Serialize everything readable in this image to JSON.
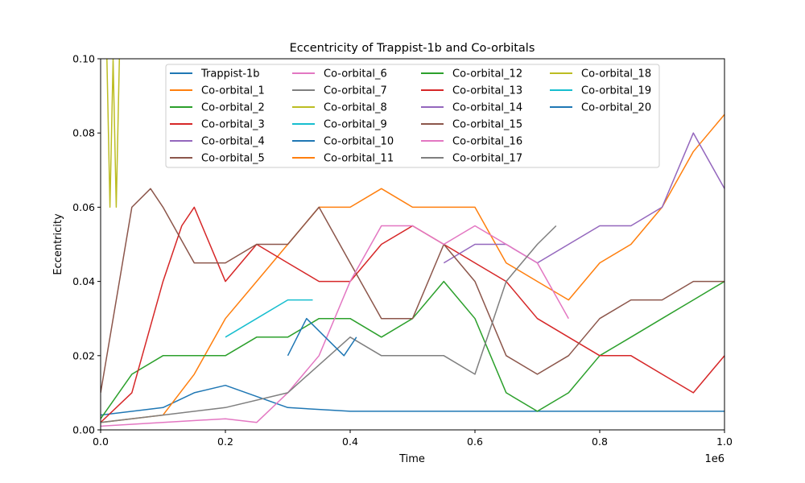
{
  "chart_data": {
    "type": "line",
    "title": "Eccentricity of Trappist-1b and Co-orbitals",
    "xlabel": "Time",
    "ylabel": "Eccentricity",
    "x_offset_label": "1e6",
    "xlim": [
      0,
      1000000
    ],
    "ylim": [
      0,
      0.1
    ],
    "xticks": [
      0,
      200000,
      400000,
      600000,
      800000,
      1000000
    ],
    "xtick_labels": [
      "0.0",
      "0.2",
      "0.4",
      "0.6",
      "0.8",
      "1.0"
    ],
    "yticks": [
      0,
      0.02,
      0.04,
      0.06,
      0.08,
      0.1
    ],
    "ytick_labels": [
      "0.00",
      "0.02",
      "0.04",
      "0.06",
      "0.08",
      "0.10"
    ],
    "grid": false,
    "legend_position": "top",
    "legend_columns": 4,
    "series": [
      {
        "name": "Trappist-1b",
        "color": "#1f77b4",
        "points": [
          [
            0,
            0.004
          ],
          [
            100000,
            0.006
          ],
          [
            150000,
            0.01
          ],
          [
            200000,
            0.012
          ],
          [
            300000,
            0.006
          ],
          [
            400000,
            0.005
          ],
          [
            500000,
            0.005
          ],
          [
            600000,
            0.005
          ],
          [
            700000,
            0.005
          ],
          [
            800000,
            0.005
          ],
          [
            900000,
            0.005
          ],
          [
            1000000,
            0.005
          ]
        ]
      },
      {
        "name": "Co-orbital_1",
        "color": "#ff7f0e",
        "points": [
          [
            0,
            0.002
          ],
          [
            100000,
            0.004
          ],
          [
            150000,
            0.015
          ],
          [
            200000,
            0.03
          ],
          [
            250000,
            0.04
          ],
          [
            300000,
            0.05
          ],
          [
            350000,
            0.06
          ],
          [
            400000,
            0.06
          ],
          [
            450000,
            0.065
          ],
          [
            500000,
            0.06
          ],
          [
            550000,
            0.06
          ],
          [
            600000,
            0.06
          ],
          [
            650000,
            0.045
          ],
          [
            700000,
            0.04
          ],
          [
            750000,
            0.035
          ],
          [
            800000,
            0.045
          ],
          [
            850000,
            0.05
          ],
          [
            900000,
            0.06
          ],
          [
            950000,
            0.075
          ],
          [
            1000000,
            0.085
          ]
        ]
      },
      {
        "name": "Co-orbital_2",
        "color": "#2ca02c",
        "points": [
          [
            0,
            0.003
          ],
          [
            50000,
            0.015
          ],
          [
            100000,
            0.02
          ],
          [
            150000,
            0.02
          ],
          [
            200000,
            0.02
          ],
          [
            250000,
            0.025
          ],
          [
            300000,
            0.025
          ],
          [
            350000,
            0.03
          ],
          [
            400000,
            0.03
          ],
          [
            450000,
            0.025
          ],
          [
            500000,
            0.03
          ],
          [
            550000,
            0.04
          ],
          [
            600000,
            0.03
          ],
          [
            650000,
            0.01
          ],
          [
            700000,
            0.005
          ],
          [
            750000,
            0.01
          ],
          [
            800000,
            0.02
          ],
          [
            850000,
            0.025
          ],
          [
            900000,
            0.03
          ],
          [
            950000,
            0.035
          ],
          [
            1000000,
            0.04
          ]
        ]
      },
      {
        "name": "Co-orbital_3",
        "color": "#d62728",
        "points": [
          [
            0,
            0.002
          ],
          [
            50000,
            0.01
          ],
          [
            100000,
            0.04
          ],
          [
            130000,
            0.055
          ],
          [
            150000,
            0.06
          ],
          [
            200000,
            0.04
          ],
          [
            250000,
            0.05
          ],
          [
            300000,
            0.045
          ],
          [
            350000,
            0.04
          ],
          [
            400000,
            0.04
          ],
          [
            450000,
            0.05
          ],
          [
            500000,
            0.055
          ],
          [
            550000,
            0.05
          ],
          [
            600000,
            0.045
          ],
          [
            650000,
            0.04
          ],
          [
            700000,
            0.03
          ],
          [
            750000,
            0.025
          ],
          [
            800000,
            0.02
          ],
          [
            850000,
            0.02
          ],
          [
            900000,
            0.015
          ],
          [
            950000,
            0.01
          ],
          [
            1000000,
            0.02
          ]
        ]
      },
      {
        "name": "Co-orbital_4",
        "color": "#9467bd",
        "points": [
          [
            550000,
            0.045
          ],
          [
            600000,
            0.05
          ],
          [
            650000,
            0.05
          ],
          [
            700000,
            0.045
          ],
          [
            750000,
            0.05
          ],
          [
            800000,
            0.055
          ],
          [
            850000,
            0.055
          ],
          [
            900000,
            0.06
          ],
          [
            950000,
            0.08
          ],
          [
            1000000,
            0.065
          ]
        ]
      },
      {
        "name": "Co-orbital_5",
        "color": "#8c564b",
        "points": [
          [
            0,
            0.01
          ],
          [
            30000,
            0.04
          ],
          [
            50000,
            0.06
          ],
          [
            80000,
            0.065
          ],
          [
            100000,
            0.06
          ],
          [
            150000,
            0.045
          ],
          [
            200000,
            0.045
          ],
          [
            250000,
            0.05
          ],
          [
            300000,
            0.05
          ],
          [
            350000,
            0.06
          ],
          [
            400000,
            0.045
          ],
          [
            450000,
            0.03
          ],
          [
            500000,
            0.03
          ],
          [
            550000,
            0.05
          ],
          [
            600000,
            0.04
          ],
          [
            650000,
            0.02
          ],
          [
            700000,
            0.015
          ],
          [
            750000,
            0.02
          ],
          [
            800000,
            0.03
          ],
          [
            850000,
            0.035
          ],
          [
            900000,
            0.035
          ],
          [
            950000,
            0.04
          ],
          [
            1000000,
            0.04
          ]
        ]
      },
      {
        "name": "Co-orbital_6",
        "color": "#e377c2",
        "points": [
          [
            0,
            0.001
          ],
          [
            100000,
            0.002
          ],
          [
            200000,
            0.003
          ],
          [
            250000,
            0.002
          ],
          [
            300000,
            0.01
          ],
          [
            350000,
            0.02
          ],
          [
            400000,
            0.04
          ],
          [
            450000,
            0.055
          ],
          [
            500000,
            0.055
          ],
          [
            550000,
            0.05
          ],
          [
            600000,
            0.055
          ],
          [
            650000,
            0.05
          ],
          [
            700000,
            0.045
          ],
          [
            750000,
            0.03
          ]
        ]
      },
      {
        "name": "Co-orbital_7",
        "color": "#7f7f7f",
        "points": [
          [
            0,
            0.002
          ],
          [
            100000,
            0.004
          ],
          [
            200000,
            0.006
          ],
          [
            300000,
            0.01
          ],
          [
            400000,
            0.025
          ],
          [
            450000,
            0.02
          ],
          [
            500000,
            0.02
          ],
          [
            550000,
            0.02
          ],
          [
            600000,
            0.015
          ],
          [
            650000,
            0.04
          ],
          [
            700000,
            0.05
          ],
          [
            730000,
            0.055
          ]
        ]
      },
      {
        "name": "Co-orbital_8",
        "color": "#bcbd22",
        "points": [
          [
            10000,
            0.1
          ],
          [
            15000,
            0.06
          ],
          [
            20000,
            0.1
          ],
          [
            25000,
            0.06
          ],
          [
            30000,
            0.1
          ]
        ]
      },
      {
        "name": "Co-orbital_9",
        "color": "#17becf",
        "points": [
          [
            200000,
            0.025
          ],
          [
            250000,
            0.03
          ],
          [
            300000,
            0.035
          ],
          [
            340000,
            0.035
          ]
        ]
      },
      {
        "name": "Co-orbital_10",
        "color": "#1f77b4",
        "points": [
          [
            300000,
            0.02
          ],
          [
            330000,
            0.03
          ],
          [
            360000,
            0.025
          ],
          [
            390000,
            0.02
          ],
          [
            410000,
            0.025
          ]
        ]
      },
      {
        "name": "Co-orbital_11",
        "color": "#ff7f0e",
        "points": []
      },
      {
        "name": "Co-orbital_12",
        "color": "#2ca02c",
        "points": []
      },
      {
        "name": "Co-orbital_13",
        "color": "#d62728",
        "points": []
      },
      {
        "name": "Co-orbital_14",
        "color": "#9467bd",
        "points": []
      },
      {
        "name": "Co-orbital_15",
        "color": "#8c564b",
        "points": []
      },
      {
        "name": "Co-orbital_16",
        "color": "#e377c2",
        "points": []
      },
      {
        "name": "Co-orbital_17",
        "color": "#7f7f7f",
        "points": []
      },
      {
        "name": "Co-orbital_18",
        "color": "#bcbd22",
        "points": []
      },
      {
        "name": "Co-orbital_19",
        "color": "#17becf",
        "points": []
      },
      {
        "name": "Co-orbital_20",
        "color": "#1f77b4",
        "points": []
      }
    ]
  }
}
